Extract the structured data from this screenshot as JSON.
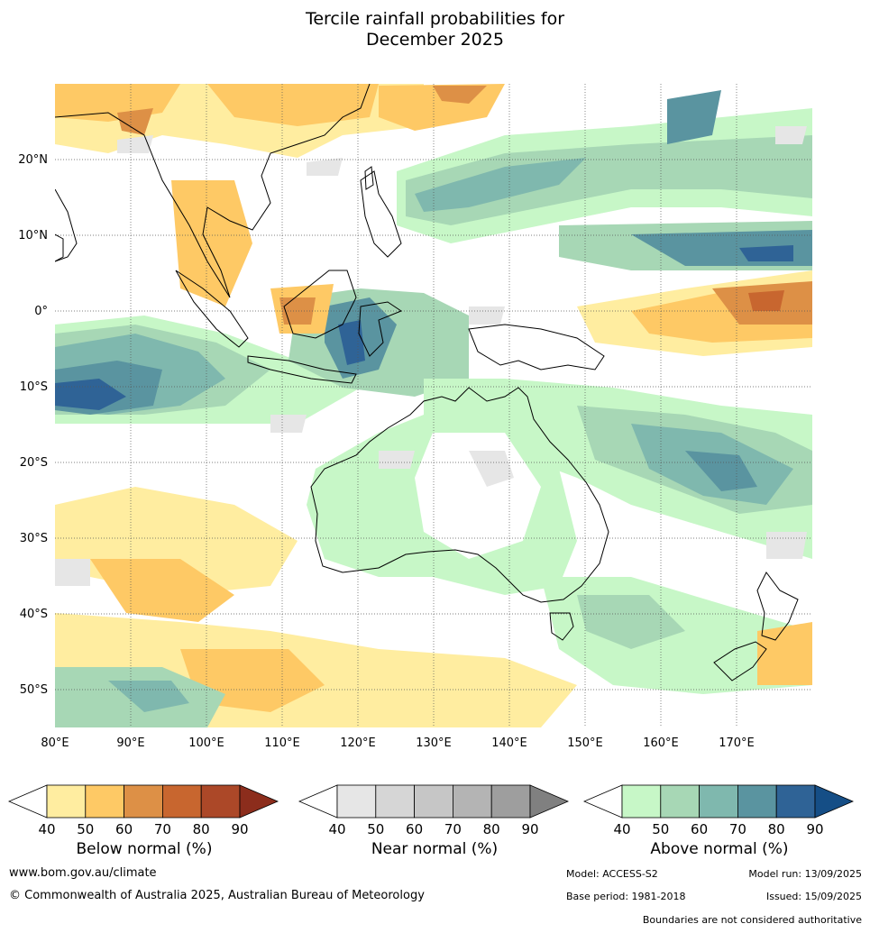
{
  "title_line1": "Tercile rainfall probabilities for",
  "title_line2": "December 2025",
  "map": {
    "lon_labels": [
      "80°E",
      "90°E",
      "100°E",
      "110°E",
      "120°E",
      "130°E",
      "140°E",
      "150°E",
      "160°E",
      "170°E"
    ],
    "lat_labels": [
      "20°N",
      "10°N",
      "0°",
      "10°S",
      "20°S",
      "30°S",
      "40°S",
      "50°S"
    ],
    "boundaries_note": "Boundaries are not considered authoritative"
  },
  "colorbars": [
    {
      "label": "Below normal (%)",
      "ticks": [
        "40",
        "50",
        "60",
        "70",
        "80",
        "90"
      ],
      "colors": [
        "#ffeda0",
        "#fec965",
        "#dd9046",
        "#c8662f",
        "#ac4828",
        "#8c2d1c"
      ]
    },
    {
      "label": "Near normal (%)",
      "ticks": [
        "40",
        "50",
        "60",
        "70",
        "80",
        "90"
      ],
      "colors": [
        "#e6e6e6",
        "#d6d6d6",
        "#c6c6c6",
        "#b4b4b4",
        "#9e9e9e",
        "#808080"
      ]
    },
    {
      "label": "Above normal (%)",
      "ticks": [
        "40",
        "50",
        "60",
        "70",
        "80",
        "90"
      ],
      "colors": [
        "#c7f7c7",
        "#a7d7b5",
        "#7fb8ae",
        "#5a94a0",
        "#2f6396",
        "#154e86"
      ]
    }
  ],
  "footer": {
    "website": "www.bom.gov.au/climate",
    "copyright": "© Commonwealth of Australia 2025, Australian Bureau of Meteorology",
    "model": "Model: ACCESS-S2",
    "model_run": "Model run: 13/09/2025",
    "base_period": "Base period: 1981-2018",
    "issued": "Issued: 15/09/2025"
  }
}
